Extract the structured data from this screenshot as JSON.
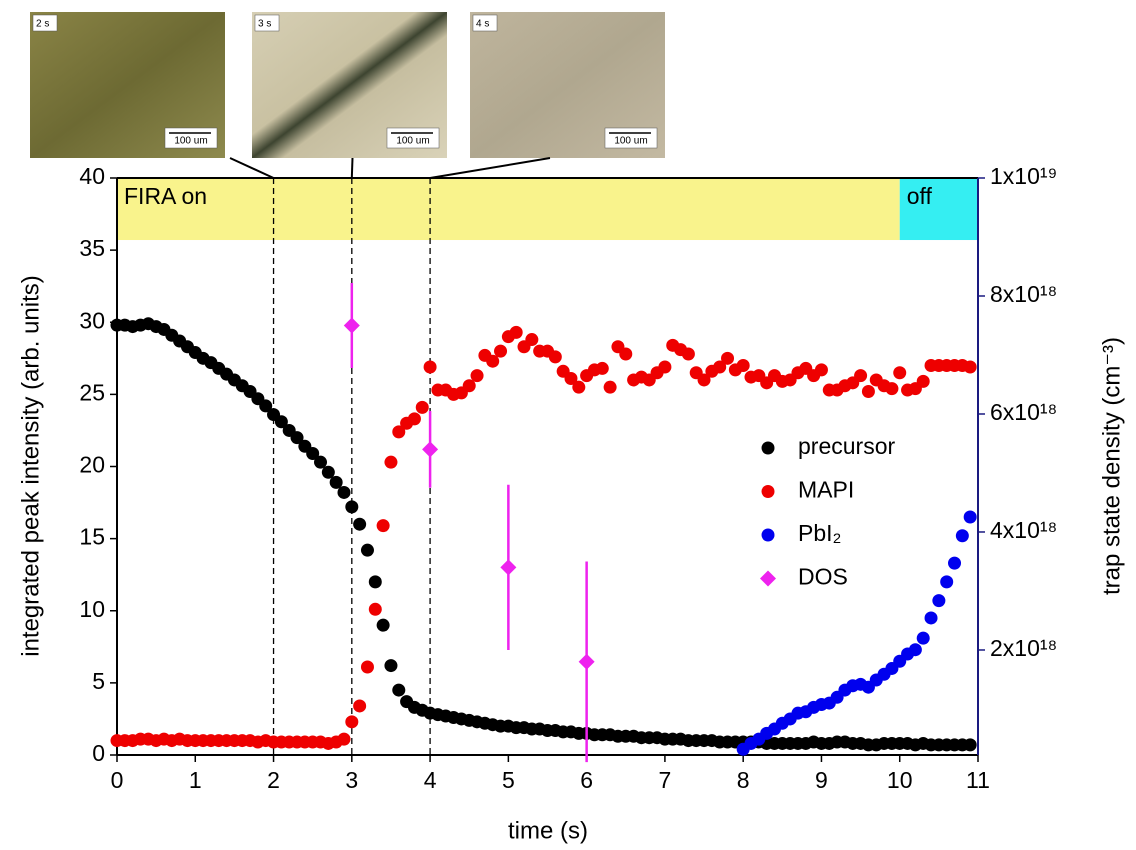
{
  "chart_data": {
    "type": "scatter",
    "xlabel": "time (s)",
    "ylabel": "integrated peak intensity (arb. units)",
    "y2label": "trap state density (cm⁻³)",
    "xlim": [
      0,
      11
    ],
    "ylim": [
      0,
      40
    ],
    "y2lim": [
      220000000000000000,
      10000000000000000000
    ],
    "xticks": [
      0,
      1,
      2,
      3,
      4,
      5,
      6,
      7,
      8,
      9,
      10,
      11
    ],
    "yticks": [
      0,
      5,
      10,
      15,
      20,
      25,
      30,
      35,
      40
    ],
    "y2ticks": [
      {
        "value": 2000000000000000000,
        "label": "2x10¹⁸"
      },
      {
        "value": 4000000000000000000,
        "label": "4x10¹⁸"
      },
      {
        "value": 6000000000000000000,
        "label": "6x10¹⁸"
      },
      {
        "value": 8000000000000000000,
        "label": "8x10¹⁸"
      },
      {
        "value": 10000000000000000000,
        "label": "1x10¹⁹"
      }
    ],
    "bands": [
      {
        "label": "FIRA on",
        "from": 0,
        "to": 10,
        "y": [
          35.7,
          40
        ],
        "color": "#f9f38c"
      },
      {
        "label": "off",
        "from": 10,
        "to": 11,
        "y": [
          35.7,
          40
        ],
        "color": "#35eef2"
      }
    ],
    "vlines": [
      2,
      3,
      4
    ],
    "insets": [
      {
        "label": "2 s",
        "scale": "100 um"
      },
      {
        "label": "3 s",
        "scale": "100 um"
      },
      {
        "label": "4 s",
        "scale": "100 um"
      }
    ],
    "x": [
      0,
      0.1,
      0.2,
      0.3,
      0.4,
      0.5,
      0.6,
      0.7,
      0.8,
      0.9,
      1,
      1.1,
      1.2,
      1.3,
      1.4,
      1.5,
      1.6,
      1.7,
      1.8,
      1.9,
      2,
      2.1,
      2.2,
      2.3,
      2.4,
      2.5,
      2.6,
      2.7,
      2.8,
      2.9,
      3,
      3.1,
      3.2,
      3.3,
      3.4,
      3.5,
      3.6,
      3.7,
      3.8,
      3.9,
      4,
      4.1,
      4.2,
      4.3,
      4.4,
      4.5,
      4.6,
      4.7,
      4.8,
      4.9,
      5,
      5.1,
      5.2,
      5.3,
      5.4,
      5.5,
      5.6,
      5.7,
      5.8,
      5.9,
      6,
      6.1,
      6.2,
      6.3,
      6.4,
      6.5,
      6.6,
      6.7,
      6.8,
      6.9,
      7,
      7.1,
      7.2,
      7.3,
      7.4,
      7.5,
      7.6,
      7.7,
      7.8,
      7.9,
      8,
      8.1,
      8.2,
      8.3,
      8.4,
      8.5,
      8.6,
      8.7,
      8.8,
      8.9,
      9,
      9.1,
      9.2,
      9.3,
      9.4,
      9.5,
      9.6,
      9.7,
      9.8,
      9.9,
      10,
      10.1,
      10.2,
      10.3,
      10.4,
      10.5,
      10.6,
      10.7,
      10.8,
      10.9
    ],
    "legend": "right",
    "series": [
      {
        "name": "precursor",
        "color": "#000000",
        "marker": "circle",
        "values": [
          29.8,
          29.8,
          29.7,
          29.8,
          29.9,
          29.7,
          29.5,
          29.1,
          28.7,
          28.3,
          27.9,
          27.5,
          27.2,
          26.8,
          26.4,
          26.0,
          25.6,
          25.2,
          24.7,
          24.2,
          23.6,
          23.1,
          22.5,
          22.0,
          21.4,
          20.9,
          20.3,
          19.6,
          18.9,
          18.2,
          17.2,
          16.0,
          14.2,
          12.0,
          9.0,
          6.2,
          4.5,
          3.7,
          3.3,
          3.1,
          2.9,
          2.8,
          2.7,
          2.6,
          2.5,
          2.4,
          2.3,
          2.2,
          2.1,
          2.0,
          2.0,
          1.9,
          1.9,
          1.8,
          1.8,
          1.7,
          1.7,
          1.6,
          1.6,
          1.5,
          1.5,
          1.4,
          1.4,
          1.4,
          1.3,
          1.3,
          1.3,
          1.2,
          1.2,
          1.2,
          1.1,
          1.1,
          1.1,
          1.0,
          1.0,
          1.0,
          1.0,
          0.9,
          0.9,
          0.9,
          0.9,
          0.9,
          0.9,
          0.8,
          0.8,
          0.8,
          0.8,
          0.8,
          0.8,
          0.9,
          0.8,
          0.8,
          0.9,
          0.9,
          0.8,
          0.8,
          0.7,
          0.7,
          0.8,
          0.8,
          0.8,
          0.8,
          0.7,
          0.8,
          0.7,
          0.7,
          0.7,
          0.7,
          0.7,
          0.7
        ]
      },
      {
        "name": "MAPI",
        "color": "#ee0000",
        "marker": "circle",
        "values": [
          1.0,
          1.0,
          1.0,
          1.1,
          1.1,
          1.0,
          1.1,
          1.0,
          1.1,
          1.0,
          1.0,
          1.0,
          1.0,
          1.0,
          1.0,
          1.0,
          1.0,
          1.0,
          0.9,
          1.0,
          0.9,
          0.9,
          0.9,
          0.9,
          0.9,
          0.9,
          0.9,
          0.8,
          0.9,
          1.1,
          2.3,
          3.4,
          6.1,
          10.1,
          15.9,
          20.3,
          22.4,
          23.0,
          23.3,
          24.1,
          26.9,
          25.3,
          25.3,
          25.0,
          25.1,
          25.6,
          26.3,
          27.7,
          27.3,
          28.0,
          29.0,
          29.3,
          28.3,
          28.8,
          28.0,
          28.0,
          27.6,
          26.6,
          26.1,
          25.5,
          26.3,
          26.7,
          26.8,
          25.5,
          28.3,
          27.8,
          26.0,
          26.2,
          26.0,
          26.5,
          26.9,
          28.4,
          28.1,
          27.8,
          26.5,
          26.0,
          26.6,
          26.9,
          27.5,
          26.7,
          27.0,
          26.2,
          26.3,
          25.8,
          26.3,
          25.9,
          26.0,
          26.5,
          26.8,
          26.3,
          26.7,
          25.3,
          25.3,
          25.6,
          25.8,
          26.3,
          25.2,
          26.0,
          25.6,
          25.4,
          26.5,
          25.3,
          25.4,
          25.9,
          27.0,
          27.0,
          27.0,
          27.0,
          27.0,
          26.9
        ]
      },
      {
        "name": "PbI₂",
        "color": "#0000ee",
        "marker": "circle",
        "x": [
          8,
          8.1,
          8.2,
          8.3,
          8.4,
          8.5,
          8.6,
          8.7,
          8.8,
          8.9,
          9,
          9.1,
          9.2,
          9.3,
          9.4,
          9.5,
          9.6,
          9.7,
          9.8,
          9.9,
          10,
          10.1,
          10.2,
          10.3,
          10.4,
          10.5,
          10.6,
          10.7,
          10.8,
          10.9
        ],
        "values": [
          0.4,
          0.8,
          1.1,
          1.5,
          1.8,
          2.2,
          2.5,
          2.9,
          3.0,
          3.3,
          3.5,
          3.6,
          4.0,
          4.5,
          4.8,
          4.9,
          4.7,
          5.2,
          5.6,
          6.0,
          6.5,
          7.0,
          7.3,
          8.1,
          9.5,
          10.7,
          12.0,
          13.3,
          15.2,
          16.5
        ]
      },
      {
        "name": "DOS",
        "color": "#ee22ee",
        "marker": "diamond",
        "axis": "y2",
        "x": [
          3,
          4,
          5,
          6
        ],
        "values": [
          7500000000000000000,
          5400000000000000000,
          3400000000000000000,
          1800000000000000000
        ],
        "errors": [
          720000000000000000,
          650000000000000000,
          1400000000000000000,
          1700000000000000000
        ]
      }
    ]
  }
}
